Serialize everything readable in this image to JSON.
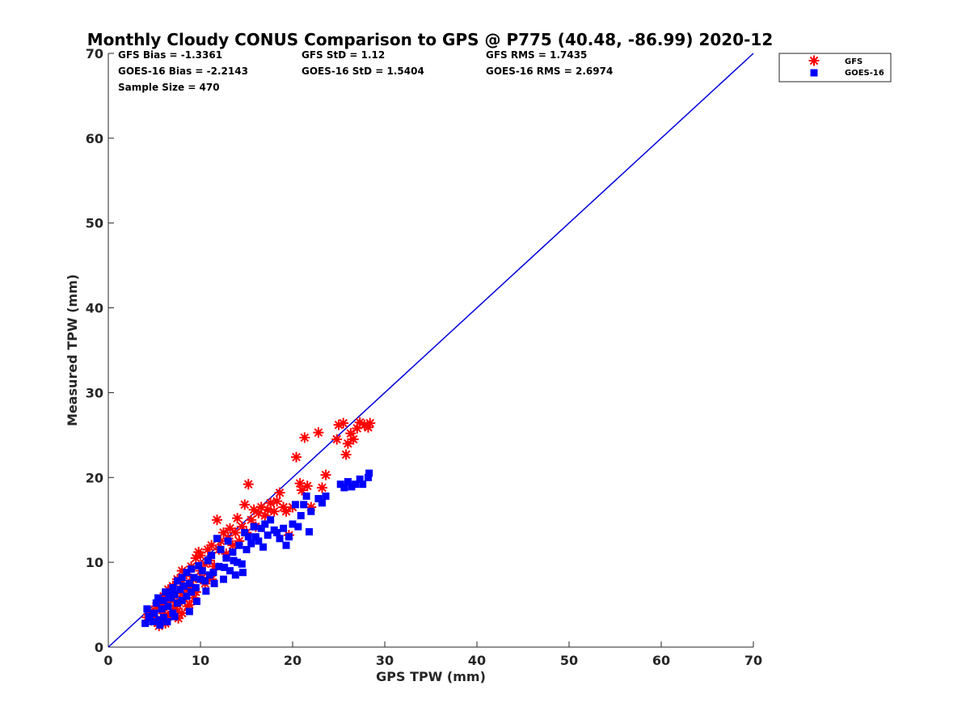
{
  "chart_data": {
    "type": "scatter",
    "title": "Monthly Cloudy CONUS Comparison to GPS @ P775 (40.48, -86.99) 2020-12",
    "xlabel": "GPS TPW (mm)",
    "ylabel": "Measured TPW (mm)",
    "xlim": [
      0,
      70
    ],
    "ylim": [
      0,
      70
    ],
    "xticks": [
      "0",
      "10",
      "20",
      "30",
      "40",
      "50",
      "60",
      "70"
    ],
    "yticks": [
      "0",
      "10",
      "20",
      "30",
      "40",
      "50",
      "60",
      "70"
    ],
    "grid": false,
    "legend_position": "top-right-outside",
    "reference_line": {
      "x": [
        0,
        70
      ],
      "y": [
        0,
        70
      ],
      "color": "#0000dd"
    },
    "stats": {
      "gfs_bias": "GFS Bias = -1.3361",
      "gfs_std": "GFS StD = 1.12",
      "gfs_rms": "GFS RMS = 1.7435",
      "goes_bias": "GOES-16 Bias = -2.2143",
      "goes_std": "GOES-16 StD = 1.5404",
      "goes_rms": "GOES-16 RMS = 2.6974",
      "sample_size": "Sample Size = 470"
    },
    "series": [
      {
        "name": "GFS",
        "marker": "asterisk",
        "color": "#ff0000",
        "points": [
          [
            4.2,
            3.5
          ],
          [
            4.5,
            4.2
          ],
          [
            5.0,
            3.0
          ],
          [
            5.2,
            4.8
          ],
          [
            5.5,
            2.5
          ],
          [
            5.5,
            5.5
          ],
          [
            5.8,
            3.2
          ],
          [
            6.0,
            4.0
          ],
          [
            6.0,
            6.0
          ],
          [
            6.2,
            5.0
          ],
          [
            6.5,
            3.6
          ],
          [
            6.5,
            6.8
          ],
          [
            6.8,
            5.5
          ],
          [
            7.0,
            4.2
          ],
          [
            7.0,
            7.2
          ],
          [
            7.2,
            6.0
          ],
          [
            7.5,
            5.0
          ],
          [
            7.5,
            8.0
          ],
          [
            7.8,
            6.5
          ],
          [
            8.0,
            4.0
          ],
          [
            8.0,
            7.5
          ],
          [
            8.0,
            9.0
          ],
          [
            8.2,
            5.8
          ],
          [
            8.5,
            6.8
          ],
          [
            8.5,
            8.6
          ],
          [
            8.8,
            5.0
          ],
          [
            9.0,
            7.0
          ],
          [
            9.0,
            9.5
          ],
          [
            9.2,
            8.0
          ],
          [
            9.5,
            10.5
          ],
          [
            9.5,
            6.5
          ],
          [
            9.8,
            11.2
          ],
          [
            10.0,
            9.0
          ],
          [
            10.0,
            10.8
          ],
          [
            10.2,
            8.2
          ],
          [
            10.5,
            9.8
          ],
          [
            10.8,
            11.5
          ],
          [
            11.0,
            10.2
          ],
          [
            11.2,
            12.0
          ],
          [
            11.5,
            9.5
          ],
          [
            11.8,
            15.0
          ],
          [
            12.0,
            11.5
          ],
          [
            12.2,
            12.5
          ],
          [
            12.5,
            13.5
          ],
          [
            12.8,
            11.0
          ],
          [
            13.0,
            12.8
          ],
          [
            13.2,
            14.0
          ],
          [
            13.5,
            12.0
          ],
          [
            13.8,
            13.5
          ],
          [
            14.0,
            15.2
          ],
          [
            14.2,
            12.5
          ],
          [
            14.5,
            14.2
          ],
          [
            14.8,
            16.8
          ],
          [
            15.0,
            13.5
          ],
          [
            15.2,
            19.2
          ],
          [
            15.5,
            15.0
          ],
          [
            15.8,
            16.2
          ],
          [
            16.0,
            14.2
          ],
          [
            16.3,
            15.8
          ],
          [
            16.6,
            16.5
          ],
          [
            17.0,
            15.5
          ],
          [
            17.3,
            16.2
          ],
          [
            17.6,
            17.0
          ],
          [
            18.0,
            16.0
          ],
          [
            18.3,
            17.2
          ],
          [
            18.6,
            18.2
          ],
          [
            19.0,
            16.5
          ],
          [
            19.3,
            16.0
          ],
          [
            19.6,
            13.2
          ],
          [
            20.0,
            16.5
          ],
          [
            20.4,
            22.4
          ],
          [
            20.8,
            19.3
          ],
          [
            21.0,
            18.5
          ],
          [
            21.3,
            24.7
          ],
          [
            21.6,
            19.0
          ],
          [
            22.0,
            16.5
          ],
          [
            22.8,
            25.3
          ],
          [
            23.2,
            18.8
          ],
          [
            23.6,
            20.3
          ],
          [
            24.8,
            24.5
          ],
          [
            25.0,
            26.2
          ],
          [
            25.5,
            26.4
          ],
          [
            25.8,
            22.7
          ],
          [
            26.0,
            24.0
          ],
          [
            26.3,
            25.2
          ],
          [
            26.6,
            24.5
          ],
          [
            27.0,
            25.8
          ],
          [
            27.3,
            26.5
          ],
          [
            27.8,
            26.2
          ],
          [
            28.2,
            25.9
          ],
          [
            28.4,
            26.4
          ],
          [
            4.8,
            3.8
          ],
          [
            5.6,
            4.5
          ],
          [
            6.8,
            3.8
          ],
          [
            7.3,
            4.5
          ],
          [
            8.6,
            4.8
          ],
          [
            9.3,
            5.8
          ],
          [
            10.5,
            7.5
          ],
          [
            11.2,
            8.0
          ],
          [
            6.2,
            2.8
          ],
          [
            7.6,
            3.4
          ]
        ]
      },
      {
        "name": "GOES-16",
        "marker": "square",
        "color": "#0000ff",
        "points": [
          [
            4.0,
            2.8
          ],
          [
            4.2,
            4.5
          ],
          [
            4.5,
            3.5
          ],
          [
            4.8,
            3.0
          ],
          [
            5.0,
            4.0
          ],
          [
            5.2,
            5.2
          ],
          [
            5.5,
            3.2
          ],
          [
            5.8,
            4.5
          ],
          [
            6.0,
            5.5
          ],
          [
            6.0,
            3.5
          ],
          [
            6.2,
            6.5
          ],
          [
            6.5,
            4.8
          ],
          [
            6.8,
            5.8
          ],
          [
            7.0,
            4.0
          ],
          [
            7.0,
            7.0
          ],
          [
            7.2,
            6.2
          ],
          [
            7.5,
            5.2
          ],
          [
            7.5,
            7.8
          ],
          [
            7.8,
            6.8
          ],
          [
            8.0,
            5.5
          ],
          [
            8.0,
            8.2
          ],
          [
            8.2,
            7.2
          ],
          [
            8.5,
            6.0
          ],
          [
            8.5,
            8.8
          ],
          [
            8.8,
            7.5
          ],
          [
            9.0,
            6.5
          ],
          [
            9.0,
            9.2
          ],
          [
            9.3,
            8.2
          ],
          [
            9.5,
            7.0
          ],
          [
            9.8,
            9.6
          ],
          [
            10.0,
            8.0
          ],
          [
            10.2,
            9.0
          ],
          [
            10.5,
            7.8
          ],
          [
            10.8,
            10.2
          ],
          [
            11.0,
            8.5
          ],
          [
            11.2,
            10.8
          ],
          [
            11.5,
            7.5
          ],
          [
            11.8,
            12.8
          ],
          [
            12.0,
            9.5
          ],
          [
            12.2,
            11.5
          ],
          [
            12.5,
            8.0
          ],
          [
            12.8,
            10.5
          ],
          [
            13.0,
            12.5
          ],
          [
            13.2,
            9.0
          ],
          [
            13.5,
            11.2
          ],
          [
            13.8,
            8.5
          ],
          [
            14.0,
            10.0
          ],
          [
            14.2,
            12.0
          ],
          [
            14.5,
            9.8
          ],
          [
            14.8,
            13.5
          ],
          [
            15.0,
            11.5
          ],
          [
            15.2,
            13.0
          ],
          [
            15.5,
            12.2
          ],
          [
            15.8,
            14.2
          ],
          [
            16.0,
            13.0
          ],
          [
            16.3,
            12.5
          ],
          [
            16.6,
            14.0
          ],
          [
            17.0,
            14.5
          ],
          [
            17.3,
            13.2
          ],
          [
            17.6,
            15.0
          ],
          [
            18.0,
            13.8
          ],
          [
            18.3,
            13.5
          ],
          [
            18.6,
            12.8
          ],
          [
            19.0,
            14.0
          ],
          [
            19.3,
            12.0
          ],
          [
            19.6,
            13.0
          ],
          [
            20.0,
            14.5
          ],
          [
            20.3,
            16.8
          ],
          [
            20.6,
            14.2
          ],
          [
            20.9,
            15.5
          ],
          [
            21.2,
            16.8
          ],
          [
            21.5,
            17.8
          ],
          [
            21.8,
            13.6
          ],
          [
            22.0,
            16.0
          ],
          [
            22.8,
            17.5
          ],
          [
            23.2,
            17.0
          ],
          [
            23.6,
            17.8
          ],
          [
            25.2,
            19.2
          ],
          [
            25.6,
            18.8
          ],
          [
            26.0,
            19.5
          ],
          [
            26.4,
            18.9
          ],
          [
            26.8,
            19.2
          ],
          [
            27.3,
            19.8
          ],
          [
            27.6,
            19.2
          ],
          [
            28.2,
            20.0
          ],
          [
            28.3,
            20.5
          ],
          [
            5.6,
            2.6
          ],
          [
            6.4,
            3.0
          ],
          [
            7.2,
            3.6
          ],
          [
            8.8,
            4.2
          ],
          [
            9.6,
            5.4
          ],
          [
            10.6,
            6.6
          ],
          [
            11.4,
            8.8
          ],
          [
            12.6,
            9.4
          ],
          [
            13.6,
            10.2
          ],
          [
            14.6,
            8.8
          ],
          [
            16.8,
            11.8
          ],
          [
            4.4,
            3.6
          ],
          [
            5.4,
            5.8
          ],
          [
            6.6,
            6.2
          ]
        ]
      }
    ]
  }
}
